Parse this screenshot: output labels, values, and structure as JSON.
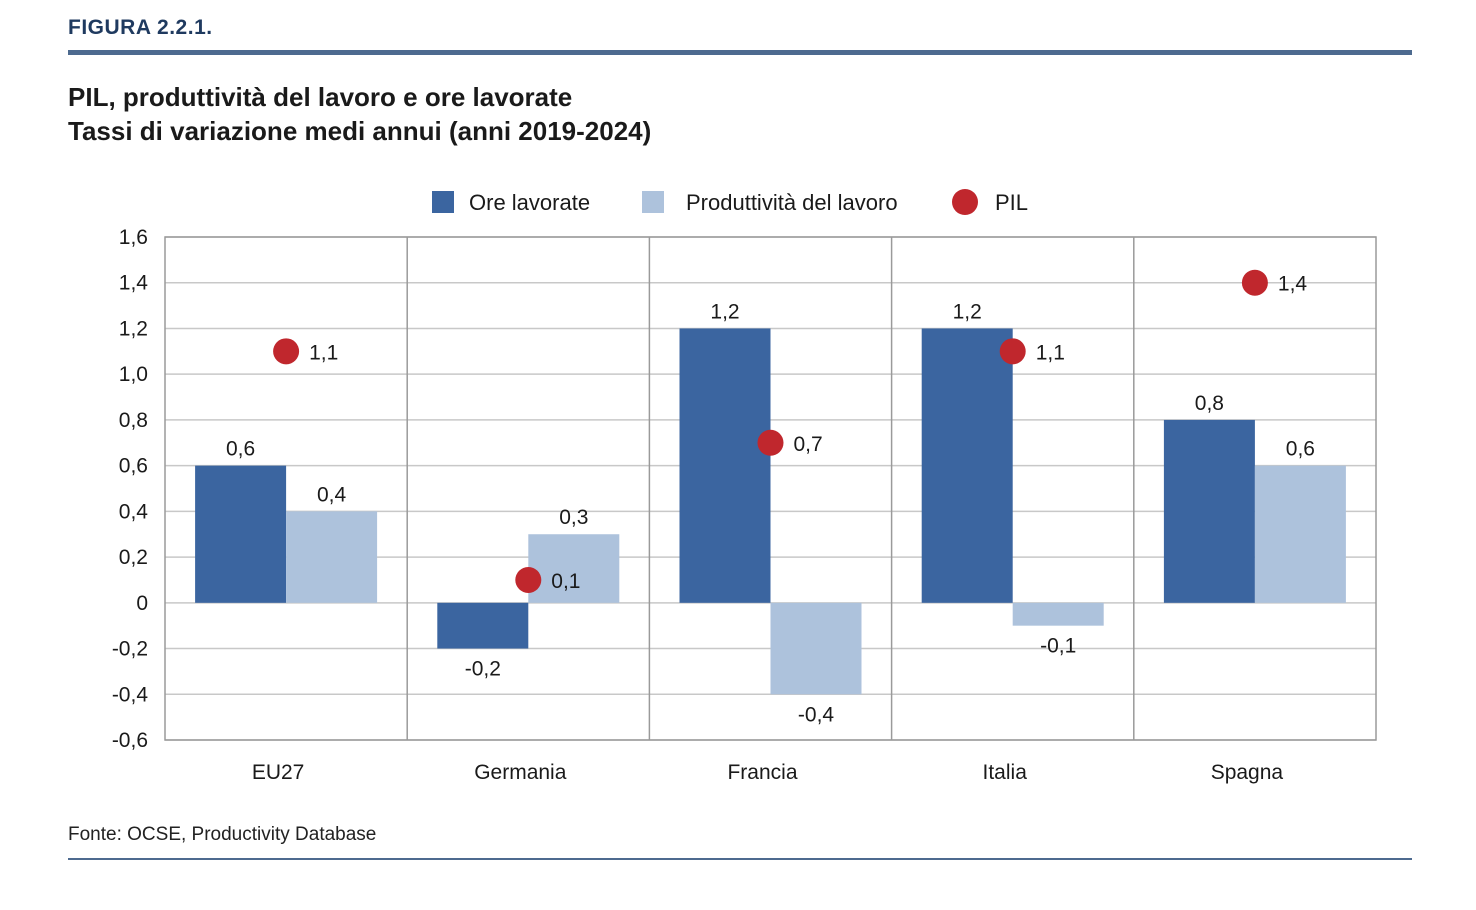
{
  "figure_label": "FIGURA 2.2.1.",
  "title_line1": "PIL, produttività del lavoro e ore lavorate",
  "title_line2": "Tassi di variazione medi annui (anni 2019-2024)",
  "source": "Fonte: OCSE, Productivity Database",
  "colors": {
    "ore": "#3b65a0",
    "produttivita": "#adc2dc",
    "pil": "#c0272d",
    "grid": "#c8c8c8",
    "frame": "#9a9a9a"
  },
  "chart_data": {
    "type": "bar",
    "categories": [
      "EU27",
      "Germania",
      "Francia",
      "Italia",
      "Spagna"
    ],
    "series": [
      {
        "name": "Ore lavorate",
        "kind": "bar",
        "values": [
          0.6,
          -0.2,
          1.2,
          1.2,
          0.8
        ],
        "labels": [
          "0,6",
          "-0,2",
          "1,2",
          "1,2",
          "0,8"
        ]
      },
      {
        "name": "Produttività del lavoro",
        "kind": "bar",
        "values": [
          0.4,
          0.3,
          -0.4,
          -0.1,
          0.6
        ],
        "labels": [
          "0,4",
          "0,3",
          "-0,4",
          "-0,1",
          "0,6"
        ]
      },
      {
        "name": "PIL",
        "kind": "dot",
        "values": [
          1.1,
          0.1,
          0.7,
          1.1,
          1.4
        ],
        "labels": [
          "1,1",
          "0,1",
          "0,7",
          "1,1",
          "1,4"
        ]
      }
    ],
    "ylim": [
      -0.6,
      1.6
    ],
    "yticks": [
      1.6,
      1.4,
      1.2,
      1.0,
      0.8,
      0.6,
      0.4,
      0.2,
      0,
      -0.2,
      -0.4,
      -0.6
    ],
    "ytick_labels": [
      "1,6",
      "1,4",
      "1,2",
      "1,0",
      "0,8",
      "0,6",
      "0,4",
      "0,2",
      "0",
      "-0,2",
      "-0,4",
      "-0,6"
    ],
    "grid": true,
    "legend": "top-center"
  }
}
